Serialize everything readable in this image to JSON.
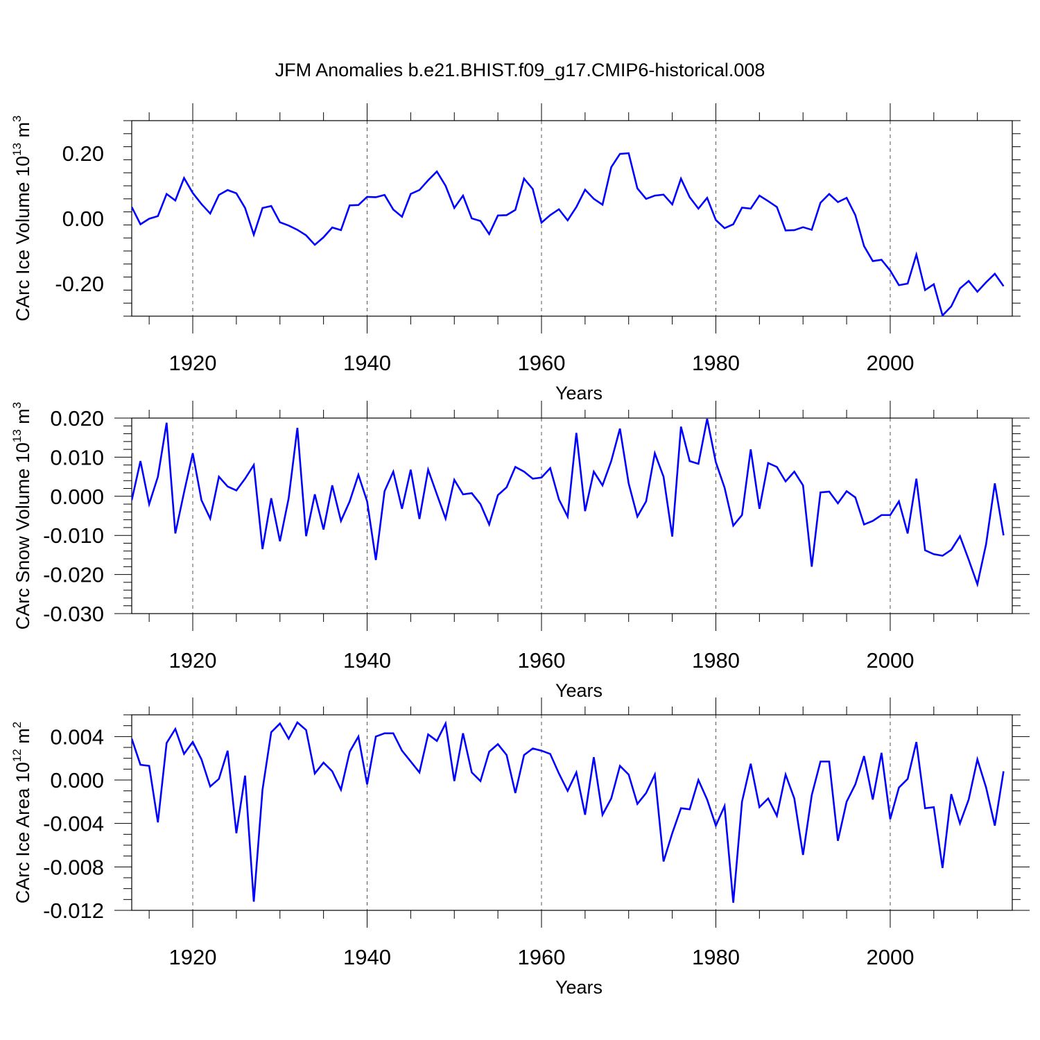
{
  "title": "JFM Anomalies b.e21.BHIST.f09_g17.CMIP6-historical.008",
  "chart_data": [
    {
      "type": "line",
      "title": "JFM Anomalies b.e21.BHIST.f09_g17.CMIP6-historical.008",
      "ylabel": "CArc Ice Volume 10",
      "ylabel_exp": "13",
      "ylabel_unit": " m",
      "ylabel_unit_exp": "3",
      "xlabel": "Years",
      "xlim": [
        1913,
        2014
      ],
      "ylim": [
        -0.3,
        0.3
      ],
      "xticks": [
        1920,
        1940,
        1960,
        1980,
        2000
      ],
      "xtick_labels": [
        "1920",
        "1940",
        "1960",
        "1980",
        "2000"
      ],
      "yticks": [
        -0.2,
        0.0,
        0.2
      ],
      "ytick_labels": [
        "-0.20",
        "0.00",
        "0.20"
      ],
      "yminor_step": 0.04,
      "color": "#0000ff",
      "years_start": 1913,
      "values": [
        0.035,
        -0.018,
        -0.001,
        0.007,
        0.075,
        0.055,
        0.124,
        0.078,
        0.044,
        0.015,
        0.072,
        0.087,
        0.077,
        0.032,
        -0.05,
        0.032,
        0.038,
        -0.012,
        -0.022,
        -0.035,
        -0.052,
        -0.081,
        -0.058,
        -0.028,
        -0.036,
        0.04,
        0.041,
        0.066,
        0.065,
        0.072,
        0.027,
        0.005,
        0.075,
        0.087,
        0.117,
        0.144,
        0.1,
        0.032,
        0.07,
        0.0,
        -0.008,
        -0.048,
        0.009,
        0.01,
        0.026,
        0.122,
        0.09,
        -0.013,
        0.01,
        0.028,
        -0.006,
        0.035,
        0.088,
        0.06,
        0.042,
        0.157,
        0.198,
        0.2,
        0.092,
        0.06,
        0.07,
        0.073,
        0.043,
        0.122,
        0.065,
        0.03,
        0.063,
        -0.005,
        -0.03,
        -0.018,
        0.033,
        0.03,
        0.07,
        0.053,
        0.035,
        -0.037,
        -0.036,
        -0.027,
        -0.035,
        0.048,
        0.075,
        0.05,
        0.063,
        0.01,
        -0.085,
        -0.131,
        -0.127,
        -0.16,
        -0.205,
        -0.2,
        -0.111,
        -0.22,
        -0.202,
        -0.298,
        -0.27,
        -0.215,
        -0.192,
        -0.225,
        -0.196,
        -0.17,
        -0.208
      ]
    },
    {
      "type": "line",
      "ylabel": "CArc Snow Volume 10",
      "ylabel_exp": "13",
      "ylabel_unit": " m",
      "ylabel_unit_exp": "3",
      "xlabel": "Years",
      "xlim": [
        1913,
        2014
      ],
      "ylim": [
        -0.03,
        0.02
      ],
      "xticks": [
        1920,
        1940,
        1960,
        1980,
        2000
      ],
      "xtick_labels": [
        "1920",
        "1940",
        "1960",
        "1980",
        "2000"
      ],
      "yticks": [
        -0.03,
        -0.02,
        -0.01,
        0.0,
        0.01,
        0.02
      ],
      "ytick_labels": [
        "-0.030",
        "-0.020",
        "-0.010",
        "0.000",
        "0.010",
        "0.020"
      ],
      "yminor_step": 0.002,
      "color": "#0000ff",
      "years_start": 1913,
      "values": [
        -0.001,
        0.009,
        -0.002,
        0.005,
        0.0188,
        -0.0095,
        0.001,
        0.011,
        -0.001,
        -0.0057,
        0.005,
        0.0025,
        0.0015,
        0.0045,
        0.008,
        -0.0135,
        -0.0005,
        -0.0115,
        -0.0005,
        0.0175,
        -0.0102,
        0.0005,
        -0.0085,
        0.0028,
        -0.0063,
        -0.0013,
        0.0055,
        -0.0013,
        -0.0163,
        0.0013,
        0.0063,
        -0.0032,
        0.0068,
        -0.0058,
        0.0068,
        0.0005,
        -0.0057,
        0.0042,
        0.0005,
        0.0008,
        -0.002,
        -0.0072,
        0.0003,
        0.0023,
        0.0075,
        0.0063,
        0.0045,
        0.0048,
        0.0072,
        -0.0008,
        -0.0052,
        0.0162,
        -0.0038,
        0.0063,
        0.0028,
        0.009,
        0.0173,
        0.0033,
        -0.0052,
        -0.0013,
        0.011,
        0.005,
        -0.0103,
        0.0178,
        0.009,
        0.0083,
        0.0198,
        0.0087,
        0.0022,
        -0.0075,
        -0.0048,
        0.012,
        -0.0032,
        0.0085,
        0.0075,
        0.0038,
        0.0063,
        0.0028,
        -0.018,
        0.001,
        0.0012,
        -0.0018,
        0.0013,
        -0.0003,
        -0.0072,
        -0.0063,
        -0.0048,
        -0.0048,
        -0.0013,
        -0.0095,
        0.0045,
        -0.0138,
        -0.0148,
        -0.0152,
        -0.0137,
        -0.0102,
        -0.0162,
        -0.0225,
        -0.0122,
        0.0033,
        -0.01
      ]
    },
    {
      "type": "line",
      "ylabel": "CArc Ice Area 10",
      "ylabel_exp": "12",
      "ylabel_unit": " m",
      "ylabel_unit_exp": "2",
      "xlabel": "Years",
      "xlim": [
        1913,
        2014
      ],
      "ylim": [
        -0.012,
        0.006
      ],
      "xticks": [
        1920,
        1940,
        1960,
        1980,
        2000
      ],
      "xtick_labels": [
        "1920",
        "1940",
        "1960",
        "1980",
        "2000"
      ],
      "yticks": [
        -0.012,
        -0.008,
        -0.004,
        0.0,
        0.004
      ],
      "ytick_labels": [
        "-0.012",
        "-0.008",
        "-0.004",
        "0.000",
        "0.004"
      ],
      "yminor_step": 0.001,
      "color": "#0000ff",
      "years_start": 1913,
      "values": [
        0.0038,
        0.0014,
        0.0013,
        -0.0039,
        0.0034,
        0.0047,
        0.0024,
        0.0035,
        0.0019,
        -0.0006,
        0.0001,
        0.0027,
        -0.0049,
        0.0004,
        -0.0112,
        -0.0009,
        0.0044,
        0.0052,
        0.0038,
        0.0053,
        0.0046,
        0.0006,
        0.0016,
        0.0008,
        -0.0009,
        0.0026,
        0.004,
        -0.0004,
        0.004,
        0.0043,
        0.0043,
        0.0027,
        0.0017,
        0.0007,
        0.0042,
        0.0036,
        0.0052,
        -0.0001,
        0.0043,
        0.0007,
        -0.0001,
        0.0026,
        0.0033,
        0.0023,
        -0.0012,
        0.0023,
        0.0029,
        0.0027,
        0.0024,
        0.0006,
        -0.001,
        0.0007,
        -0.0032,
        0.0021,
        -0.0032,
        -0.0017,
        0.0013,
        0.0005,
        -0.0022,
        -0.0012,
        0.0005,
        -0.0075,
        -0.0049,
        -0.0026,
        -0.0027,
        0.0,
        -0.0018,
        -0.0042,
        -0.0024,
        -0.0113,
        -0.002,
        0.0015,
        -0.0025,
        -0.0017,
        -0.0033,
        0.0005,
        -0.0017,
        -0.0069,
        -0.0014,
        0.0017,
        0.0017,
        -0.0056,
        -0.002,
        -0.0004,
        0.0022,
        -0.0018,
        0.0025,
        -0.0036,
        -0.0007,
        0.0001,
        0.0035,
        -0.0026,
        -0.0025,
        -0.0081,
        -0.0013,
        -0.004,
        -0.0018,
        0.0019,
        -0.0007,
        -0.0042,
        0.0008
      ]
    }
  ]
}
